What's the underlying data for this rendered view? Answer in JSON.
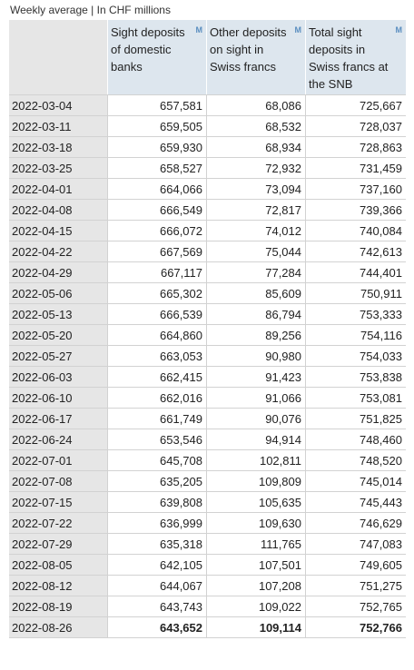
{
  "caption": "Weekly average | In CHF millions",
  "columns": [
    {
      "label": "Sight deposits of domestic banks",
      "marker": "M"
    },
    {
      "label": "Other deposits on sight in Swiss francs",
      "marker": "M"
    },
    {
      "label": "Total sight deposits in Swiss francs at the SNB",
      "marker": "M"
    }
  ],
  "rows": [
    {
      "date": "2022-03-04",
      "values": [
        "657,581",
        "68,086",
        "725,667"
      ]
    },
    {
      "date": "2022-03-11",
      "values": [
        "659,505",
        "68,532",
        "728,037"
      ]
    },
    {
      "date": "2022-03-18",
      "values": [
        "659,930",
        "68,934",
        "728,863"
      ]
    },
    {
      "date": "2022-03-25",
      "values": [
        "658,527",
        "72,932",
        "731,459"
      ]
    },
    {
      "date": "2022-04-01",
      "values": [
        "664,066",
        "73,094",
        "737,160"
      ]
    },
    {
      "date": "2022-04-08",
      "values": [
        "666,549",
        "72,817",
        "739,366"
      ]
    },
    {
      "date": "2022-04-15",
      "values": [
        "666,072",
        "74,012",
        "740,084"
      ]
    },
    {
      "date": "2022-04-22",
      "values": [
        "667,569",
        "75,044",
        "742,613"
      ]
    },
    {
      "date": "2022-04-29",
      "values": [
        "667,117",
        "77,284",
        "744,401"
      ]
    },
    {
      "date": "2022-05-06",
      "values": [
        "665,302",
        "85,609",
        "750,911"
      ]
    },
    {
      "date": "2022-05-13",
      "values": [
        "666,539",
        "86,794",
        "753,333"
      ]
    },
    {
      "date": "2022-05-20",
      "values": [
        "664,860",
        "89,256",
        "754,116"
      ]
    },
    {
      "date": "2022-05-27",
      "values": [
        "663,053",
        "90,980",
        "754,033"
      ]
    },
    {
      "date": "2022-06-03",
      "values": [
        "662,415",
        "91,423",
        "753,838"
      ]
    },
    {
      "date": "2022-06-10",
      "values": [
        "662,016",
        "91,066",
        "753,081"
      ]
    },
    {
      "date": "2022-06-17",
      "values": [
        "661,749",
        "90,076",
        "751,825"
      ]
    },
    {
      "date": "2022-06-24",
      "values": [
        "653,546",
        "94,914",
        "748,460"
      ]
    },
    {
      "date": "2022-07-01",
      "values": [
        "645,708",
        "102,811",
        "748,520"
      ]
    },
    {
      "date": "2022-07-08",
      "values": [
        "635,205",
        "109,809",
        "745,014"
      ]
    },
    {
      "date": "2022-07-15",
      "values": [
        "639,808",
        "105,635",
        "745,443"
      ]
    },
    {
      "date": "2022-07-22",
      "values": [
        "636,999",
        "109,630",
        "746,629"
      ]
    },
    {
      "date": "2022-07-29",
      "values": [
        "635,318",
        "111,765",
        "747,083"
      ]
    },
    {
      "date": "2022-08-05",
      "values": [
        "642,105",
        "107,501",
        "749,605"
      ]
    },
    {
      "date": "2022-08-12",
      "values": [
        "644,067",
        "107,208",
        "751,275"
      ]
    },
    {
      "date": "2022-08-19",
      "values": [
        "643,743",
        "109,022",
        "752,765"
      ]
    },
    {
      "date": "2022-08-26",
      "values": [
        "643,652",
        "109,114",
        "752,766"
      ]
    }
  ]
}
